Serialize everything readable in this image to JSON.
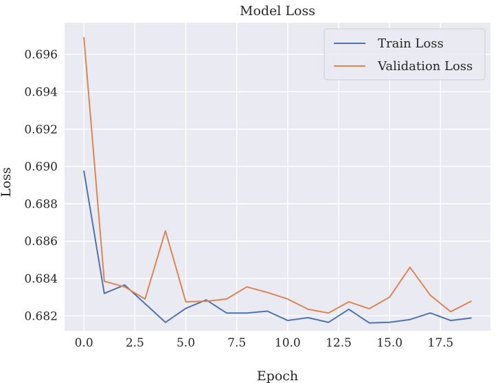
{
  "chart_data": {
    "type": "line",
    "title": "Model Loss",
    "xlabel": "Epoch",
    "ylabel": "Loss",
    "xlim": [
      -0.95,
      19.95
    ],
    "ylim": [
      0.6812,
      0.6977
    ],
    "xticks": [
      0.0,
      2.5,
      5.0,
      7.5,
      10.0,
      12.5,
      15.0,
      17.5
    ],
    "xtick_labels": [
      "0.0",
      "2.5",
      "5.0",
      "7.5",
      "10.0",
      "12.5",
      "15.0",
      "17.5"
    ],
    "yticks": [
      0.682,
      0.684,
      0.686,
      0.688,
      0.69,
      0.692,
      0.694,
      0.696
    ],
    "ytick_labels": [
      "0.682",
      "0.684",
      "0.686",
      "0.688",
      "0.690",
      "0.692",
      "0.694",
      "0.696"
    ],
    "grid": true,
    "legend_position": "top-right",
    "x": [
      0,
      1,
      2,
      3,
      4,
      5,
      6,
      7,
      8,
      9,
      10,
      11,
      12,
      13,
      14,
      15,
      16,
      17,
      18,
      19
    ],
    "series": [
      {
        "name": "Train Loss",
        "color": "#4C72B0",
        "values": [
          0.68975,
          0.6832,
          0.68365,
          0.68265,
          0.68165,
          0.6824,
          0.68285,
          0.68215,
          0.68215,
          0.68225,
          0.68175,
          0.6819,
          0.68165,
          0.68235,
          0.68162,
          0.68165,
          0.6818,
          0.68215,
          0.68175,
          0.68188
        ]
      },
      {
        "name": "Validation Loss",
        "color": "#DD8452",
        "values": [
          0.6969,
          0.68385,
          0.68355,
          0.6829,
          0.68655,
          0.68275,
          0.68278,
          0.6829,
          0.68355,
          0.68325,
          0.6829,
          0.68235,
          0.68215,
          0.68275,
          0.68238,
          0.683,
          0.6846,
          0.6831,
          0.68222,
          0.68278
        ]
      }
    ]
  }
}
